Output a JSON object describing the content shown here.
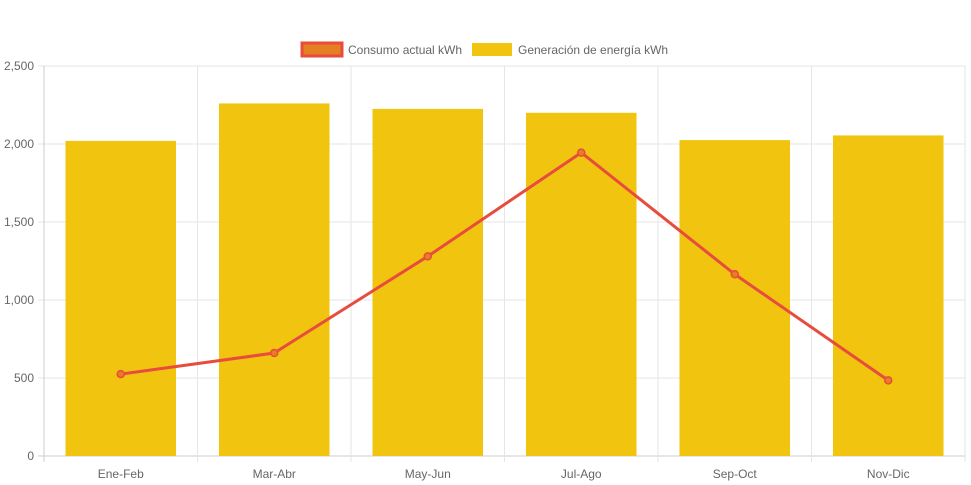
{
  "chart_data": {
    "type": "bar",
    "categories": [
      "Ene-Feb",
      "Mar-Abr",
      "May-Jun",
      "Jul-Ago",
      "Sep-Oct",
      "Nov-Dic"
    ],
    "series": [
      {
        "name": "Consumo actual kWh",
        "type": "line",
        "values": [
          525,
          660,
          1280,
          1945,
          1165,
          485
        ],
        "color": "#e74c3c",
        "fill": "#e67e22"
      },
      {
        "name": "Generación de energía kWh",
        "type": "bar",
        "values": [
          2020,
          2260,
          2225,
          2200,
          2025,
          2055
        ],
        "color": "#f1c40f"
      }
    ],
    "y_ticks": [
      "0",
      "500",
      "1,000",
      "1,500",
      "2,000",
      "2,500"
    ],
    "ylim": [
      0,
      2500
    ],
    "y_tick_step": 500,
    "grid": true,
    "legend_position": "top"
  }
}
